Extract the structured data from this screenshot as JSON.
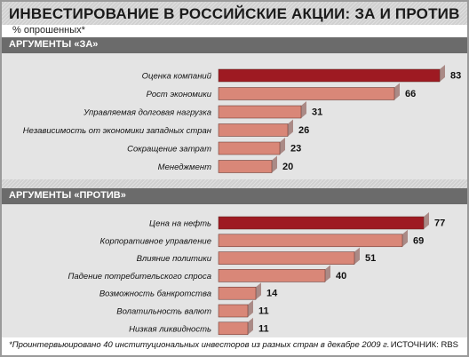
{
  "title": "ИНВЕСТИРОВАНИЕ В РОССИЙСКИЕ АКЦИИ: ЗА И ПРОТИВ",
  "subtitle": "% опрошенных*",
  "footnote": "*Проинтервьюировано 40 институциональных инвесторов из разных стран в декабре 2009 г.",
  "source": "ИСТОЧНИК: RBS",
  "colors": {
    "highlight": "#9e1a22",
    "bar": "#d98778",
    "panel": "#e4e4e4",
    "header": "#6b6b6b"
  },
  "chart_data": [
    {
      "type": "bar",
      "orientation": "horizontal",
      "title": "АРГУМЕНТЫ «ЗА»",
      "categories": [
        "Оценка компаний",
        "Рост экономики",
        "Управляемая долговая нагрузка",
        "Независимость от экономики западных стран",
        "Сокращение затрат",
        "Менеджмент"
      ],
      "values": [
        83,
        66,
        31,
        26,
        23,
        20
      ],
      "highlighted_index": 0,
      "xlim": [
        0,
        90
      ]
    },
    {
      "type": "bar",
      "orientation": "horizontal",
      "title": "АРГУМЕНТЫ «ПРОТИВ»",
      "categories": [
        "Цена на нефть",
        "Корпоративное управление",
        "Влияние политики",
        "Падение потребительского спроса",
        "Возможность банкротства",
        "Волатильность валют",
        "Низкая ликвидность"
      ],
      "values": [
        77,
        69,
        51,
        40,
        14,
        11,
        11
      ],
      "highlighted_index": 0,
      "xlim": [
        0,
        90
      ]
    }
  ]
}
